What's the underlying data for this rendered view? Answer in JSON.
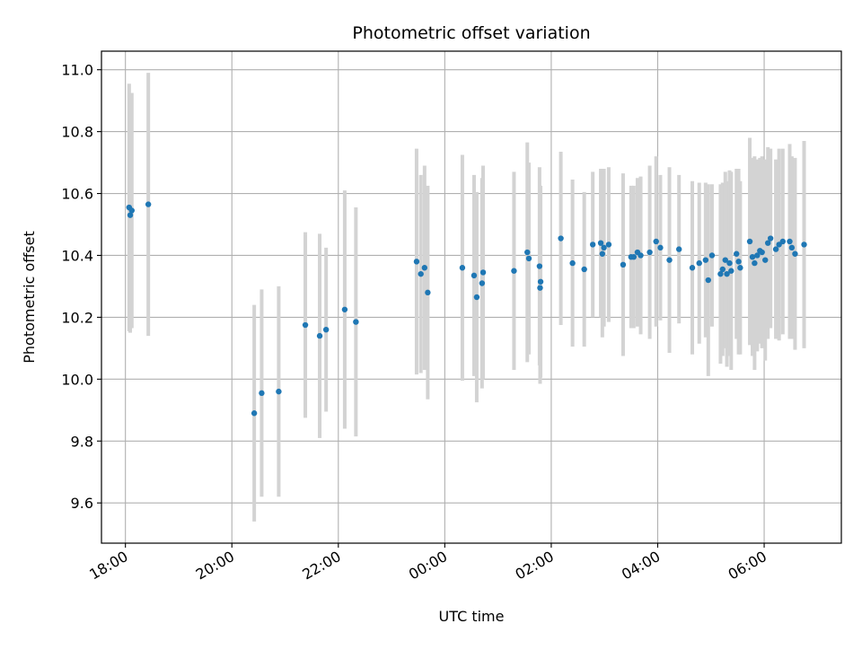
{
  "chart_data": {
    "type": "scatter",
    "title": "Photometric offset variation",
    "xlabel": "UTC time",
    "ylabel": "Photometric offset",
    "xlim_hours": [
      17.55,
      31.45
    ],
    "ylim": [
      9.47,
      11.06
    ],
    "grid": true,
    "x_ticks": [
      {
        "h": 18,
        "label": "18:00"
      },
      {
        "h": 20,
        "label": "20:00"
      },
      {
        "h": 22,
        "label": "22:00"
      },
      {
        "h": 24,
        "label": "00:00"
      },
      {
        "h": 26,
        "label": "02:00"
      },
      {
        "h": 28,
        "label": "04:00"
      },
      {
        "h": 30,
        "label": "06:00"
      }
    ],
    "y_ticks": [
      {
        "v": 9.6,
        "label": "9.6"
      },
      {
        "v": 9.8,
        "label": "9.8"
      },
      {
        "v": 10.0,
        "label": "10.0"
      },
      {
        "v": 10.2,
        "label": "10.2"
      },
      {
        "v": 10.4,
        "label": "10.4"
      },
      {
        "v": 10.6,
        "label": "10.6"
      },
      {
        "v": 10.8,
        "label": "10.8"
      },
      {
        "v": 11.0,
        "label": "11.0"
      }
    ],
    "colors": {
      "point": "#1f77b4",
      "errorbar": "#d3d3d3",
      "grid": "#b0b0b0"
    },
    "points": [
      [
        18.07,
        10.555,
        0.4
      ],
      [
        18.09,
        10.53,
        0.38
      ],
      [
        18.12,
        10.545,
        0.38
      ],
      [
        18.43,
        10.565,
        0.425
      ],
      [
        20.42,
        9.89,
        0.35
      ],
      [
        20.56,
        9.955,
        0.335
      ],
      [
        20.88,
        9.96,
        0.34
      ],
      [
        21.38,
        10.175,
        0.3
      ],
      [
        21.65,
        10.14,
        0.33
      ],
      [
        21.77,
        10.16,
        0.265
      ],
      [
        22.12,
        10.225,
        0.385
      ],
      [
        22.33,
        10.185,
        0.37
      ],
      [
        23.47,
        10.38,
        0.365
      ],
      [
        23.55,
        10.34,
        0.32
      ],
      [
        23.62,
        10.36,
        0.33
      ],
      [
        23.68,
        10.28,
        0.345
      ],
      [
        24.33,
        10.36,
        0.365
      ],
      [
        24.55,
        10.335,
        0.325
      ],
      [
        24.6,
        10.265,
        0.34
      ],
      [
        24.7,
        10.31,
        0.34
      ],
      [
        24.72,
        10.345,
        0.345
      ],
      [
        25.3,
        10.35,
        0.32
      ],
      [
        25.55,
        10.41,
        0.355
      ],
      [
        25.58,
        10.39,
        0.31
      ],
      [
        25.78,
        10.365,
        0.32
      ],
      [
        25.79,
        10.295,
        0.31
      ],
      [
        25.8,
        10.315,
        0.31
      ],
      [
        26.18,
        10.455,
        0.28
      ],
      [
        26.4,
        10.375,
        0.27
      ],
      [
        26.62,
        10.355,
        0.25
      ],
      [
        26.78,
        10.435,
        0.235
      ],
      [
        26.93,
        10.44,
        0.24
      ],
      [
        26.96,
        10.405,
        0.27
      ],
      [
        26.99,
        10.425,
        0.255
      ],
      [
        27.08,
        10.435,
        0.25
      ],
      [
        27.35,
        10.37,
        0.295
      ],
      [
        27.5,
        10.395,
        0.23
      ],
      [
        27.55,
        10.395,
        0.23
      ],
      [
        27.62,
        10.41,
        0.24
      ],
      [
        27.68,
        10.4,
        0.255
      ],
      [
        27.85,
        10.41,
        0.28
      ],
      [
        27.97,
        10.445,
        0.275
      ],
      [
        28.05,
        10.425,
        0.235
      ],
      [
        28.22,
        10.385,
        0.3
      ],
      [
        28.4,
        10.42,
        0.24
      ],
      [
        28.65,
        10.36,
        0.28
      ],
      [
        28.78,
        10.375,
        0.26
      ],
      [
        28.9,
        10.385,
        0.25
      ],
      [
        28.95,
        10.32,
        0.31
      ],
      [
        29.02,
        10.4,
        0.23
      ],
      [
        29.18,
        10.34,
        0.29
      ],
      [
        29.22,
        10.355,
        0.28
      ],
      [
        29.27,
        10.385,
        0.285
      ],
      [
        29.3,
        10.34,
        0.3
      ],
      [
        29.35,
        10.375,
        0.3
      ],
      [
        29.38,
        10.35,
        0.32
      ],
      [
        29.48,
        10.405,
        0.275
      ],
      [
        29.52,
        10.38,
        0.3
      ],
      [
        29.55,
        10.36,
        0.28
      ],
      [
        29.73,
        10.445,
        0.335
      ],
      [
        29.78,
        10.395,
        0.32
      ],
      [
        29.82,
        10.375,
        0.345
      ],
      [
        29.87,
        10.4,
        0.31
      ],
      [
        29.92,
        10.415,
        0.3
      ],
      [
        29.96,
        10.41,
        0.31
      ],
      [
        30.02,
        10.385,
        0.325
      ],
      [
        30.07,
        10.44,
        0.31
      ],
      [
        30.12,
        10.455,
        0.29
      ],
      [
        30.22,
        10.42,
        0.29
      ],
      [
        30.28,
        10.435,
        0.31
      ],
      [
        30.35,
        10.445,
        0.3
      ],
      [
        30.48,
        10.445,
        0.315
      ],
      [
        30.52,
        10.425,
        0.295
      ],
      [
        30.58,
        10.405,
        0.31
      ],
      [
        30.75,
        10.435,
        0.335
      ]
    ]
  }
}
